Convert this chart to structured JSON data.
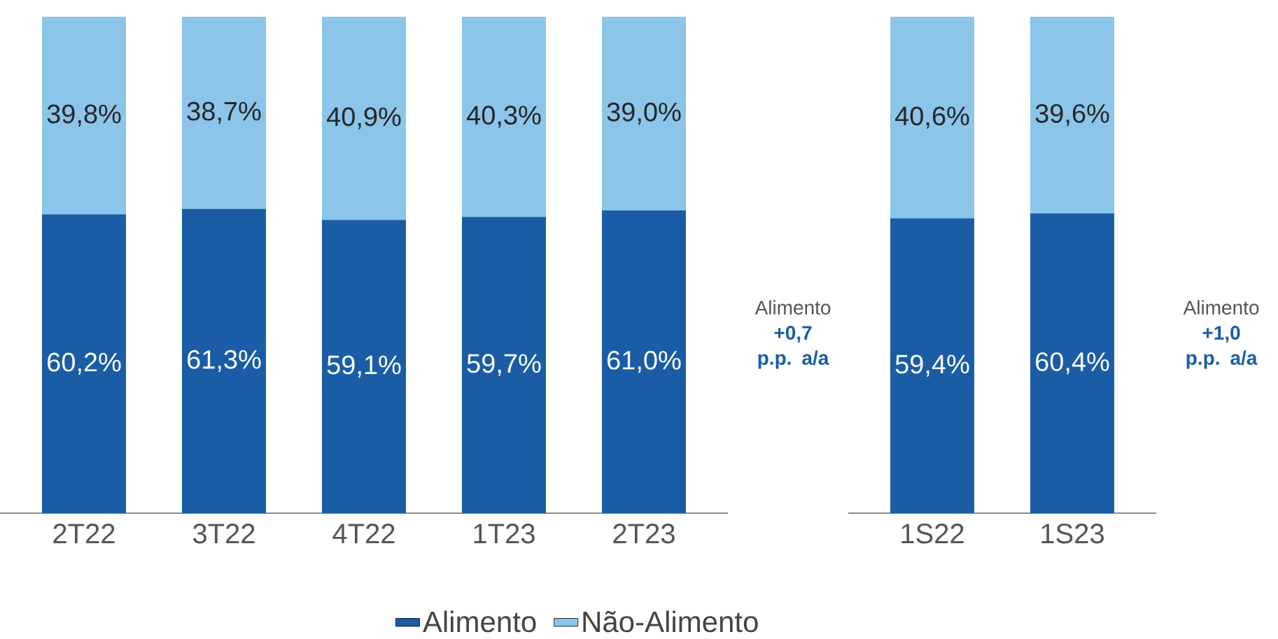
{
  "chart_data": [
    {
      "type": "bar",
      "stacked": true,
      "categories": [
        "2T22",
        "3T22",
        "4T22",
        "1T23",
        "2T23"
      ],
      "legend": "bottom",
      "series": [
        {
          "name": "Alimento",
          "color": "#1a5da6",
          "values": [
            60.2,
            61.3,
            59.1,
            59.7,
            61.0
          ],
          "value_labels": [
            "60,2%",
            "61,3%",
            "59,1%",
            "59,7%",
            "61,0%"
          ]
        },
        {
          "name": "Não-Alimento",
          "color": "#8bc5ea",
          "values": [
            39.8,
            38.7,
            40.9,
            40.3,
            39.0
          ],
          "value_labels": [
            "39,8%",
            "38,7%",
            "40,9%",
            "40,3%",
            "39,0%"
          ]
        }
      ],
      "annotations": [
        "Alimento",
        "+0,7 p.p. a/a"
      ]
    },
    {
      "type": "bar",
      "stacked": true,
      "categories": [
        "1S22",
        "1S23"
      ],
      "series": [
        {
          "color": "#1a5da6",
          "values": [
            59.4,
            60.4
          ],
          "value_labels": [
            "59,4%",
            "60,4%"
          ]
        },
        {
          "color": "#8bc5ea",
          "values": [
            40.6,
            39.6
          ],
          "value_labels": [
            "40,6%",
            "39,6%"
          ]
        }
      ],
      "annotations": [
        "Alimento",
        "+1,0 p.p. a/a"
      ]
    }
  ]
}
